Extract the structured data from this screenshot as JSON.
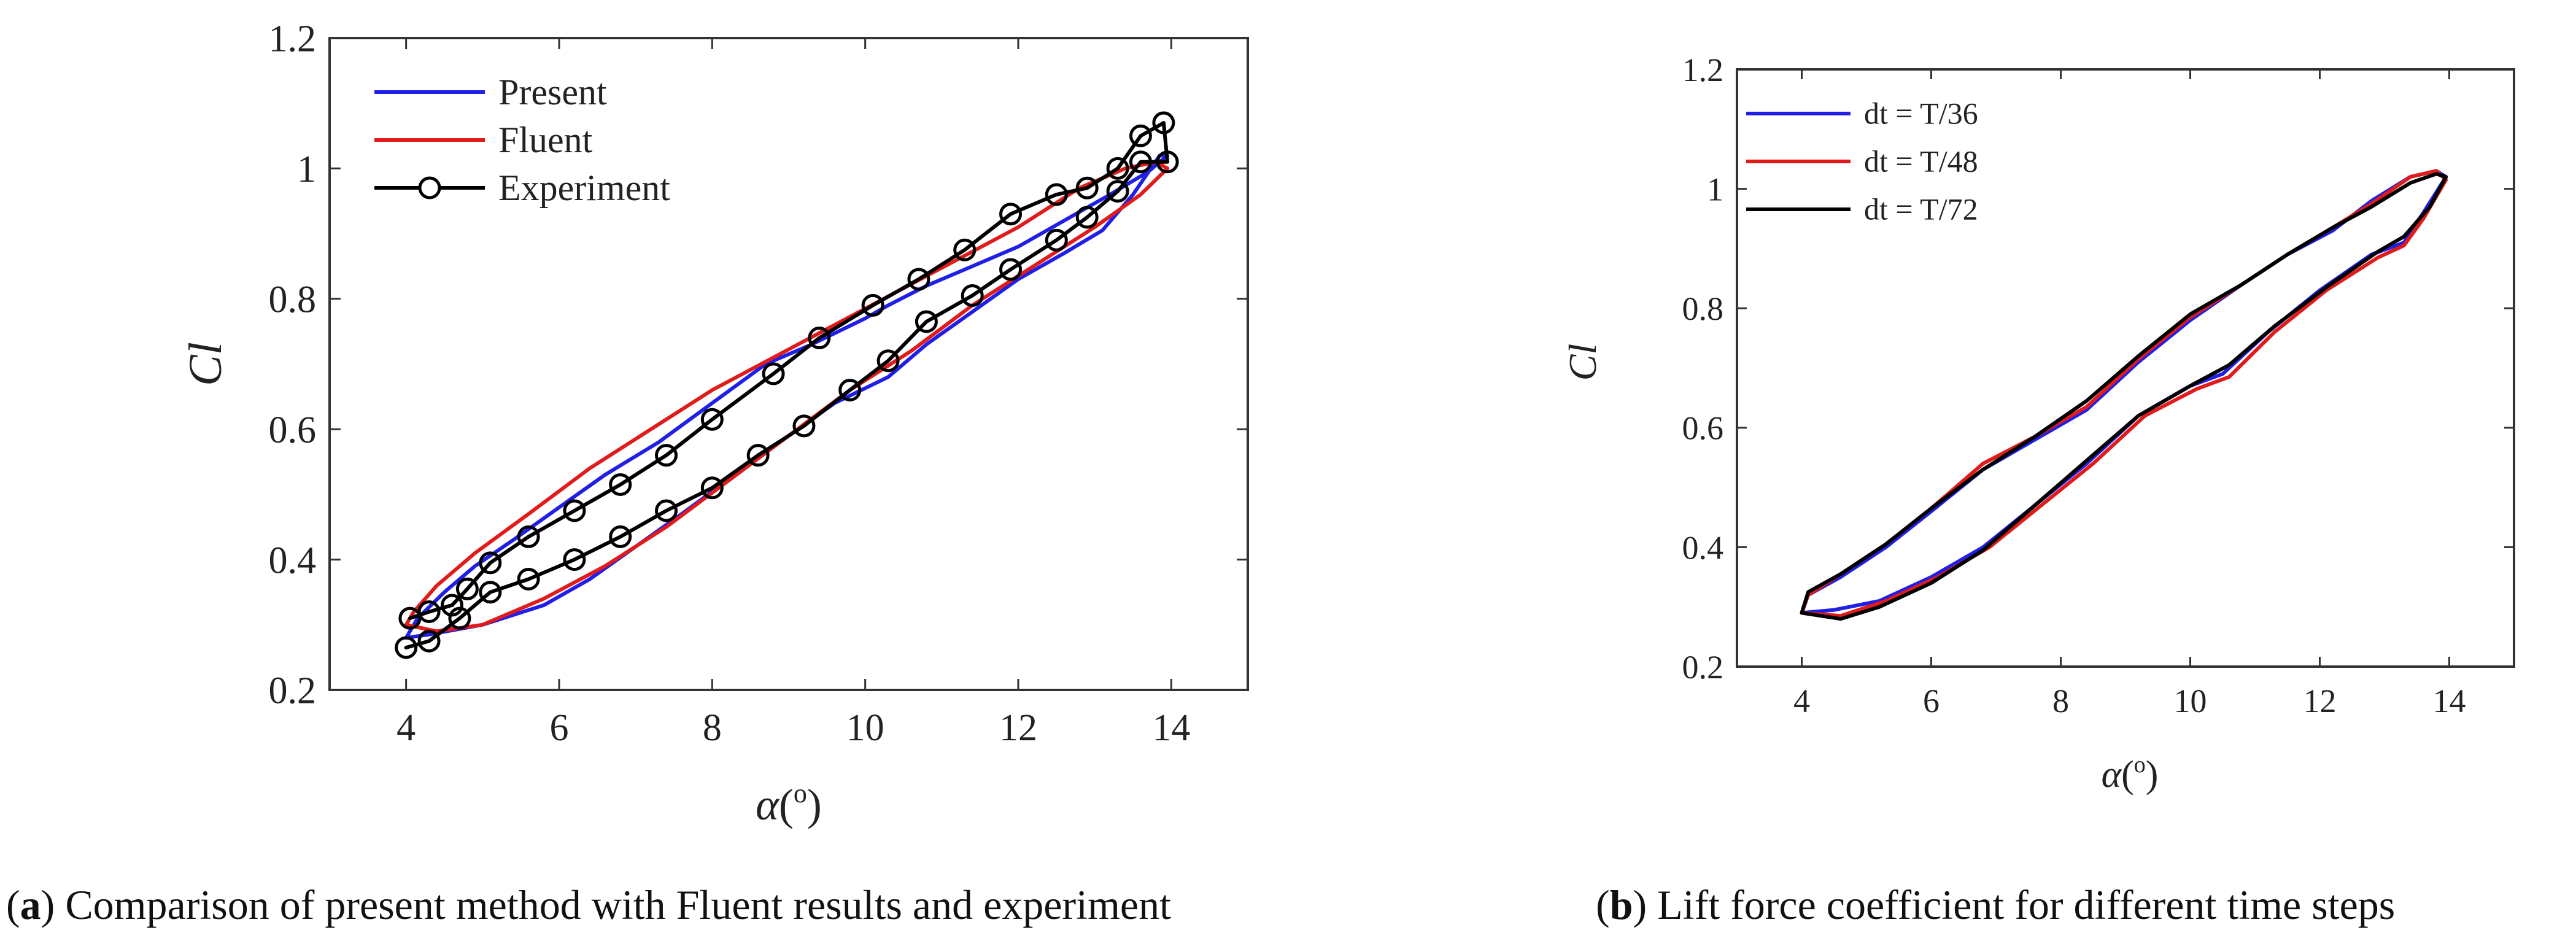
{
  "colors": {
    "present": "#1f1fe6",
    "fluent": "#e01b1b",
    "experiment": "#000000",
    "dt36": "#1f1fe6",
    "dt48": "#e01b1b",
    "dt72": "#000000"
  },
  "captions": {
    "a": {
      "tag": "a",
      "text": " Comparison of present method with Fluent results and experiment",
      "open": "(",
      "close": ")"
    },
    "b": {
      "tag": "b",
      "text": " Lift force coefficient for different time steps",
      "open": "(",
      "close": ")"
    }
  },
  "chart_data": [
    {
      "id": "a",
      "type": "line",
      "ylabel": "Cl",
      "xlabel_symbol": "α",
      "xlabel_unit": "(",
      "xlabel_sup": "o",
      "xlabel_close": ")",
      "xlim": [
        3,
        15
      ],
      "ylim": [
        0.2,
        1.2
      ],
      "xticks": [
        4,
        6,
        8,
        10,
        12,
        14
      ],
      "yticks": [
        0.2,
        0.4,
        0.6,
        0.8,
        1,
        1.2
      ],
      "ytick_labels": [
        "0.2",
        "0.4",
        "0.6",
        "0.8",
        "1",
        "1.2"
      ],
      "grid": false,
      "legend_position": "top-left",
      "series": [
        {
          "name": "Present",
          "color_key": "present",
          "marker": "none",
          "x": [
            4.0,
            4.3,
            5.0,
            5.8,
            6.4,
            7.0,
            7.6,
            8.3,
            9.0,
            9.6,
            10.3,
            10.8,
            11.4,
            12.0,
            12.6,
            13.1,
            13.5,
            13.85,
            13.95,
            13.7,
            13.2,
            12.6,
            12.0,
            11.4,
            10.8,
            10.3,
            10.0,
            9.3,
            8.7,
            8.0,
            7.3,
            6.6,
            6.0,
            5.4,
            4.9,
            4.5,
            4.15,
            4.0
          ],
          "y": [
            0.28,
            0.285,
            0.3,
            0.33,
            0.37,
            0.42,
            0.47,
            0.53,
            0.59,
            0.64,
            0.68,
            0.73,
            0.78,
            0.83,
            0.87,
            0.905,
            0.96,
            1.02,
            1.02,
            0.995,
            0.96,
            0.92,
            0.88,
            0.85,
            0.82,
            0.79,
            0.77,
            0.73,
            0.7,
            0.64,
            0.58,
            0.53,
            0.48,
            0.43,
            0.39,
            0.35,
            0.31,
            0.28
          ]
        },
        {
          "name": "Fluent",
          "color_key": "fluent",
          "marker": "none",
          "x": [
            4.0,
            4.4,
            5.0,
            5.8,
            6.6,
            7.4,
            8.2,
            9.0,
            9.8,
            10.6,
            11.4,
            12.2,
            13.0,
            13.6,
            13.95,
            13.8,
            13.4,
            12.8,
            12.0,
            11.2,
            10.4,
            9.6,
            8.8,
            8.0,
            7.2,
            6.4,
            5.6,
            4.9,
            4.4,
            4.1,
            4.0
          ],
          "y": [
            0.3,
            0.29,
            0.3,
            0.34,
            0.39,
            0.45,
            0.52,
            0.59,
            0.66,
            0.72,
            0.79,
            0.85,
            0.91,
            0.96,
            1.0,
            1.01,
            1.0,
            0.97,
            0.91,
            0.86,
            0.81,
            0.76,
            0.71,
            0.66,
            0.6,
            0.54,
            0.47,
            0.41,
            0.36,
            0.32,
            0.3
          ]
        },
        {
          "name": "Experiment",
          "color_key": "experiment",
          "marker": "circle",
          "x": [
            4.0,
            4.3,
            4.7,
            5.1,
            5.6,
            6.2,
            6.8,
            7.4,
            8.0,
            8.6,
            9.2,
            9.8,
            10.3,
            10.8,
            11.4,
            11.9,
            12.5,
            12.9,
            13.3,
            13.6,
            13.95,
            13.9,
            13.6,
            13.3,
            12.9,
            12.5,
            11.9,
            11.3,
            10.7,
            10.1,
            9.4,
            8.8,
            8.0,
            7.4,
            6.8,
            6.2,
            5.6,
            5.1,
            4.8,
            4.6,
            4.3,
            4.05
          ],
          "y": [
            0.265,
            0.275,
            0.31,
            0.35,
            0.37,
            0.4,
            0.435,
            0.475,
            0.51,
            0.56,
            0.605,
            0.66,
            0.705,
            0.765,
            0.805,
            0.845,
            0.89,
            0.925,
            0.965,
            1.01,
            1.01,
            1.07,
            1.05,
            1.0,
            0.97,
            0.96,
            0.93,
            0.875,
            0.83,
            0.79,
            0.74,
            0.685,
            0.615,
            0.56,
            0.515,
            0.475,
            0.435,
            0.395,
            0.355,
            0.33,
            0.32,
            0.31
          ]
        }
      ]
    },
    {
      "id": "b",
      "type": "line",
      "ylabel": "Cl",
      "xlabel_symbol": "α",
      "xlabel_unit": "(",
      "xlabel_sup": "o",
      "xlabel_close": ")",
      "xlim": [
        3,
        15
      ],
      "ylim": [
        0.2,
        1.2
      ],
      "xticks": [
        4,
        6,
        8,
        10,
        12,
        14
      ],
      "yticks": [
        0.2,
        0.4,
        0.6,
        0.8,
        1,
        1.2
      ],
      "ytick_labels": [
        "0.2",
        "0.4",
        "0.6",
        "0.8",
        "1",
        "1.2"
      ],
      "grid": false,
      "legend_position": "top-left",
      "series": [
        {
          "name": "dt = T/36",
          "color_key": "dt36",
          "marker": "none",
          "x": [
            4.0,
            4.5,
            5.2,
            6.0,
            6.8,
            7.6,
            8.4,
            9.2,
            10.0,
            10.5,
            11.2,
            12.0,
            12.8,
            13.3,
            13.6,
            13.95,
            13.8,
            13.4,
            12.8,
            12.2,
            11.5,
            10.8,
            10.0,
            9.2,
            8.4,
            7.6,
            6.8,
            6.0,
            5.3,
            4.6,
            4.1,
            4.0
          ],
          "y": [
            0.29,
            0.295,
            0.31,
            0.35,
            0.4,
            0.47,
            0.54,
            0.62,
            0.67,
            0.69,
            0.76,
            0.83,
            0.89,
            0.91,
            0.96,
            1.02,
            1.03,
            1.02,
            0.98,
            0.93,
            0.89,
            0.84,
            0.78,
            0.71,
            0.63,
            0.58,
            0.53,
            0.46,
            0.4,
            0.35,
            0.32,
            0.29
          ]
        },
        {
          "name": "dt = T/48",
          "color_key": "dt48",
          "marker": "none",
          "x": [
            4.0,
            4.6,
            5.3,
            6.1,
            6.9,
            7.7,
            8.5,
            9.3,
            10.1,
            10.6,
            11.3,
            12.1,
            12.9,
            13.3,
            13.6,
            13.95,
            13.8,
            13.4,
            12.8,
            12.2,
            11.5,
            10.8,
            10.0,
            9.2,
            8.4,
            7.6,
            6.8,
            6.0,
            5.3,
            4.6,
            4.1,
            4.0
          ],
          "y": [
            0.29,
            0.285,
            0.31,
            0.35,
            0.4,
            0.47,
            0.54,
            0.62,
            0.665,
            0.685,
            0.76,
            0.83,
            0.885,
            0.905,
            0.95,
            1.015,
            1.03,
            1.02,
            0.975,
            0.935,
            0.89,
            0.84,
            0.785,
            0.715,
            0.635,
            0.585,
            0.54,
            0.465,
            0.405,
            0.355,
            0.32,
            0.29
          ]
        },
        {
          "name": "dt = T/72",
          "color_key": "dt72",
          "marker": "none",
          "x": [
            4.0,
            4.6,
            5.2,
            6.0,
            6.8,
            7.6,
            8.4,
            9.2,
            10.0,
            10.6,
            11.3,
            12.1,
            12.9,
            13.3,
            13.7,
            13.95,
            13.8,
            13.4,
            12.8,
            12.2,
            11.5,
            10.8,
            10.0,
            9.2,
            8.4,
            7.6,
            6.8,
            6.0,
            5.3,
            4.6,
            4.1,
            4.0
          ],
          "y": [
            0.29,
            0.28,
            0.3,
            0.34,
            0.395,
            0.47,
            0.545,
            0.62,
            0.67,
            0.705,
            0.77,
            0.835,
            0.895,
            0.92,
            0.97,
            1.02,
            1.025,
            1.01,
            0.97,
            0.935,
            0.89,
            0.84,
            0.79,
            0.72,
            0.645,
            0.585,
            0.53,
            0.465,
            0.405,
            0.355,
            0.325,
            0.29
          ]
        }
      ]
    }
  ]
}
